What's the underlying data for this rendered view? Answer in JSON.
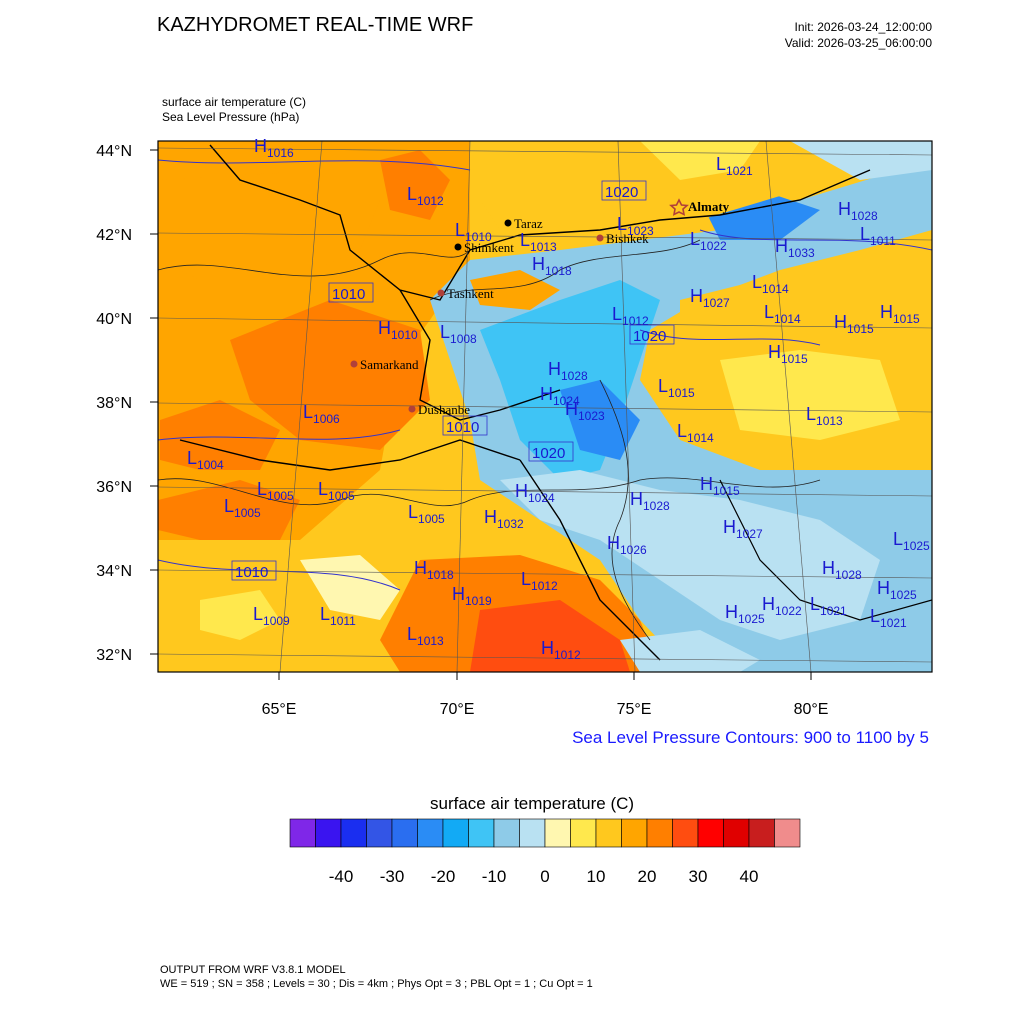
{
  "header": {
    "title": "KAZHYDROMET REAL-TIME WRF",
    "init": "Init: 2026-03-24_12:00:00",
    "valid": "Valid: 2026-03-25_06:00:00"
  },
  "fields": {
    "line1": "surface air temperature   (C)",
    "line2": "Sea Level Pressure   (hPa)"
  },
  "axes": {
    "lat_labels": [
      "44°N",
      "42°N",
      "40°N",
      "38°N",
      "36°N",
      "34°N",
      "32°N"
    ],
    "lon_labels": [
      "65°E",
      "70°E",
      "75°E",
      "80°E"
    ]
  },
  "contour_note": "Sea Level Pressure Contours: 900 to 1100 by 5",
  "colorbar": {
    "title": "surface air temperature  (C)",
    "colors": [
      "#7f27e8",
      "#3a14f0",
      "#1a2ef0",
      "#3355e6",
      "#2a6ef0",
      "#2a8cf5",
      "#12aaf5",
      "#3fc4f5",
      "#8ecbe8",
      "#b9e1f2",
      "#fff7b0",
      "#ffe84d",
      "#ffc81e",
      "#ffa500",
      "#ff7f00",
      "#ff4d10",
      "#ff0000",
      "#e00000",
      "#c81e1e",
      "#f08c8c"
    ],
    "tick_labels": [
      "-40",
      "-30",
      "-20",
      "-10",
      "0",
      "10",
      "20",
      "30",
      "40"
    ]
  },
  "cities": [
    {
      "name": "Taraz",
      "marker": "black"
    },
    {
      "name": "Shimkent",
      "marker": "black"
    },
    {
      "name": "Bishkek",
      "marker": "brown"
    },
    {
      "name": "Almaty",
      "marker": "star"
    },
    {
      "name": "Tashkent",
      "marker": "brown"
    },
    {
      "name": "Samarkand",
      "marker": "brown"
    },
    {
      "name": "Dushanbe",
      "marker": "brown"
    }
  ],
  "pressure_labels": [
    {
      "t": "H",
      "v": "1016"
    },
    {
      "t": "L",
      "v": "1021"
    },
    {
      "t": "L",
      "v": "1012"
    },
    {
      "t": "L",
      "v": "1010"
    },
    {
      "t": "L",
      "v": "1013"
    },
    {
      "t": "H",
      "v": "1018"
    },
    {
      "t": "L",
      "v": "1023"
    },
    {
      "t": "L",
      "v": "1022"
    },
    {
      "t": "H",
      "v": "1033"
    },
    {
      "t": "H",
      "v": "1028"
    },
    {
      "t": "L",
      "v": "1011"
    },
    {
      "t": "L",
      "v": "1014"
    },
    {
      "t": "H",
      "v": "1027"
    },
    {
      "t": "L",
      "v": "1014"
    },
    {
      "t": "H",
      "v": "1015"
    },
    {
      "t": "H",
      "v": "1015"
    },
    {
      "t": "H",
      "v": "1015"
    },
    {
      "t": "H",
      "v": "1010"
    },
    {
      "t": "L",
      "v": "1008"
    },
    {
      "t": "L",
      "v": "1012"
    },
    {
      "t": "L",
      "v": "1015"
    },
    {
      "t": "L",
      "v": "1013"
    },
    {
      "t": "L",
      "v": "1006"
    },
    {
      "t": "H",
      "v": "1028"
    },
    {
      "t": "H",
      "v": "1023"
    },
    {
      "t": "H",
      "v": "1024"
    },
    {
      "t": "L",
      "v": "1014"
    },
    {
      "t": "L",
      "v": "1004"
    },
    {
      "t": "L",
      "v": "1005"
    },
    {
      "t": "L",
      "v": "1005"
    },
    {
      "t": "L",
      "v": "1005"
    },
    {
      "t": "L",
      "v": "1005"
    },
    {
      "t": "H",
      "v": "1024"
    },
    {
      "t": "H",
      "v": "1032"
    },
    {
      "t": "H",
      "v": "1028"
    },
    {
      "t": "H",
      "v": "1026"
    },
    {
      "t": "H",
      "v": "1027"
    },
    {
      "t": "H",
      "v": "1015"
    },
    {
      "t": "L",
      "v": "1025"
    },
    {
      "t": "H",
      "v": "1018"
    },
    {
      "t": "H",
      "v": "1028"
    },
    {
      "t": "H",
      "v": "1025"
    },
    {
      "t": "L",
      "v": "1012"
    },
    {
      "t": "H",
      "v": "1019"
    },
    {
      "t": "L",
      "v": "1009"
    },
    {
      "t": "L",
      "v": "1011"
    },
    {
      "t": "L",
      "v": "1013"
    },
    {
      "t": "H",
      "v": "1022"
    },
    {
      "t": "H",
      "v": "1025"
    },
    {
      "t": "L",
      "v": "1021"
    },
    {
      "t": "L",
      "v": "1021"
    },
    {
      "t": "H",
      "v": "1012"
    }
  ],
  "boxed_labels": [
    "1020",
    "1010",
    "1020",
    "1010",
    "1020",
    "1010"
  ],
  "footer": {
    "line1": "OUTPUT FROM WRF V3.8.1 MODEL",
    "line2": "WE = 519 ; SN = 358 ; Levels = 30 ; Dis = 4km ; Phys Opt = 3 ; PBL Opt = 1 ; Cu Opt = 1"
  }
}
